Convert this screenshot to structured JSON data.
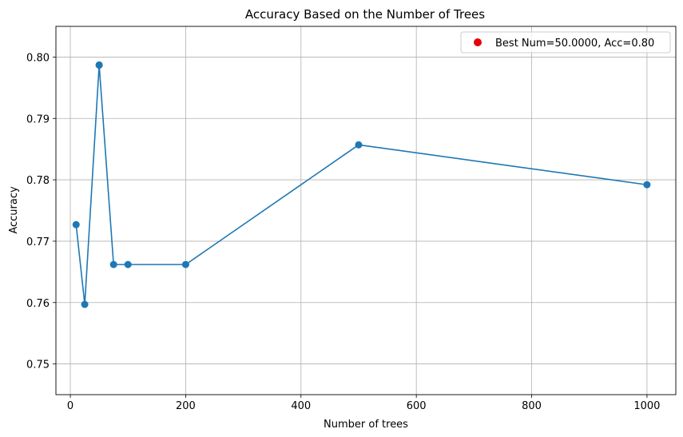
{
  "chart_data": {
    "type": "line",
    "title": "Accuracy Based on the Number of Trees",
    "xlabel": "Number of trees",
    "ylabel": "Accuracy",
    "xlim": [
      -25,
      1050
    ],
    "ylim": [
      0.745,
      0.805
    ],
    "xticks": [
      0,
      200,
      400,
      600,
      800,
      1000
    ],
    "yticks": [
      0.75,
      0.76,
      0.77,
      0.78,
      0.79,
      0.8
    ],
    "ytick_labels": [
      "0.75",
      "0.76",
      "0.77",
      "0.78",
      "0.79",
      "0.80"
    ],
    "grid": true,
    "series": [
      {
        "x": [
          10,
          25,
          50,
          75,
          100,
          200,
          500,
          1000
        ],
        "y": [
          0.7727,
          0.7597,
          0.7987,
          0.7662,
          0.7662,
          0.7662,
          0.7857,
          0.7792
        ],
        "color": "#1f77b4",
        "marker": "circle"
      }
    ],
    "best_point": {
      "x": 50,
      "y": 0.7987,
      "color": "#e8000b"
    },
    "legend": {
      "position": "top-right",
      "entries": [
        {
          "label": "Best Num=50.0000, Acc=0.80",
          "color": "#e8000b",
          "marker": "circle"
        }
      ]
    }
  }
}
